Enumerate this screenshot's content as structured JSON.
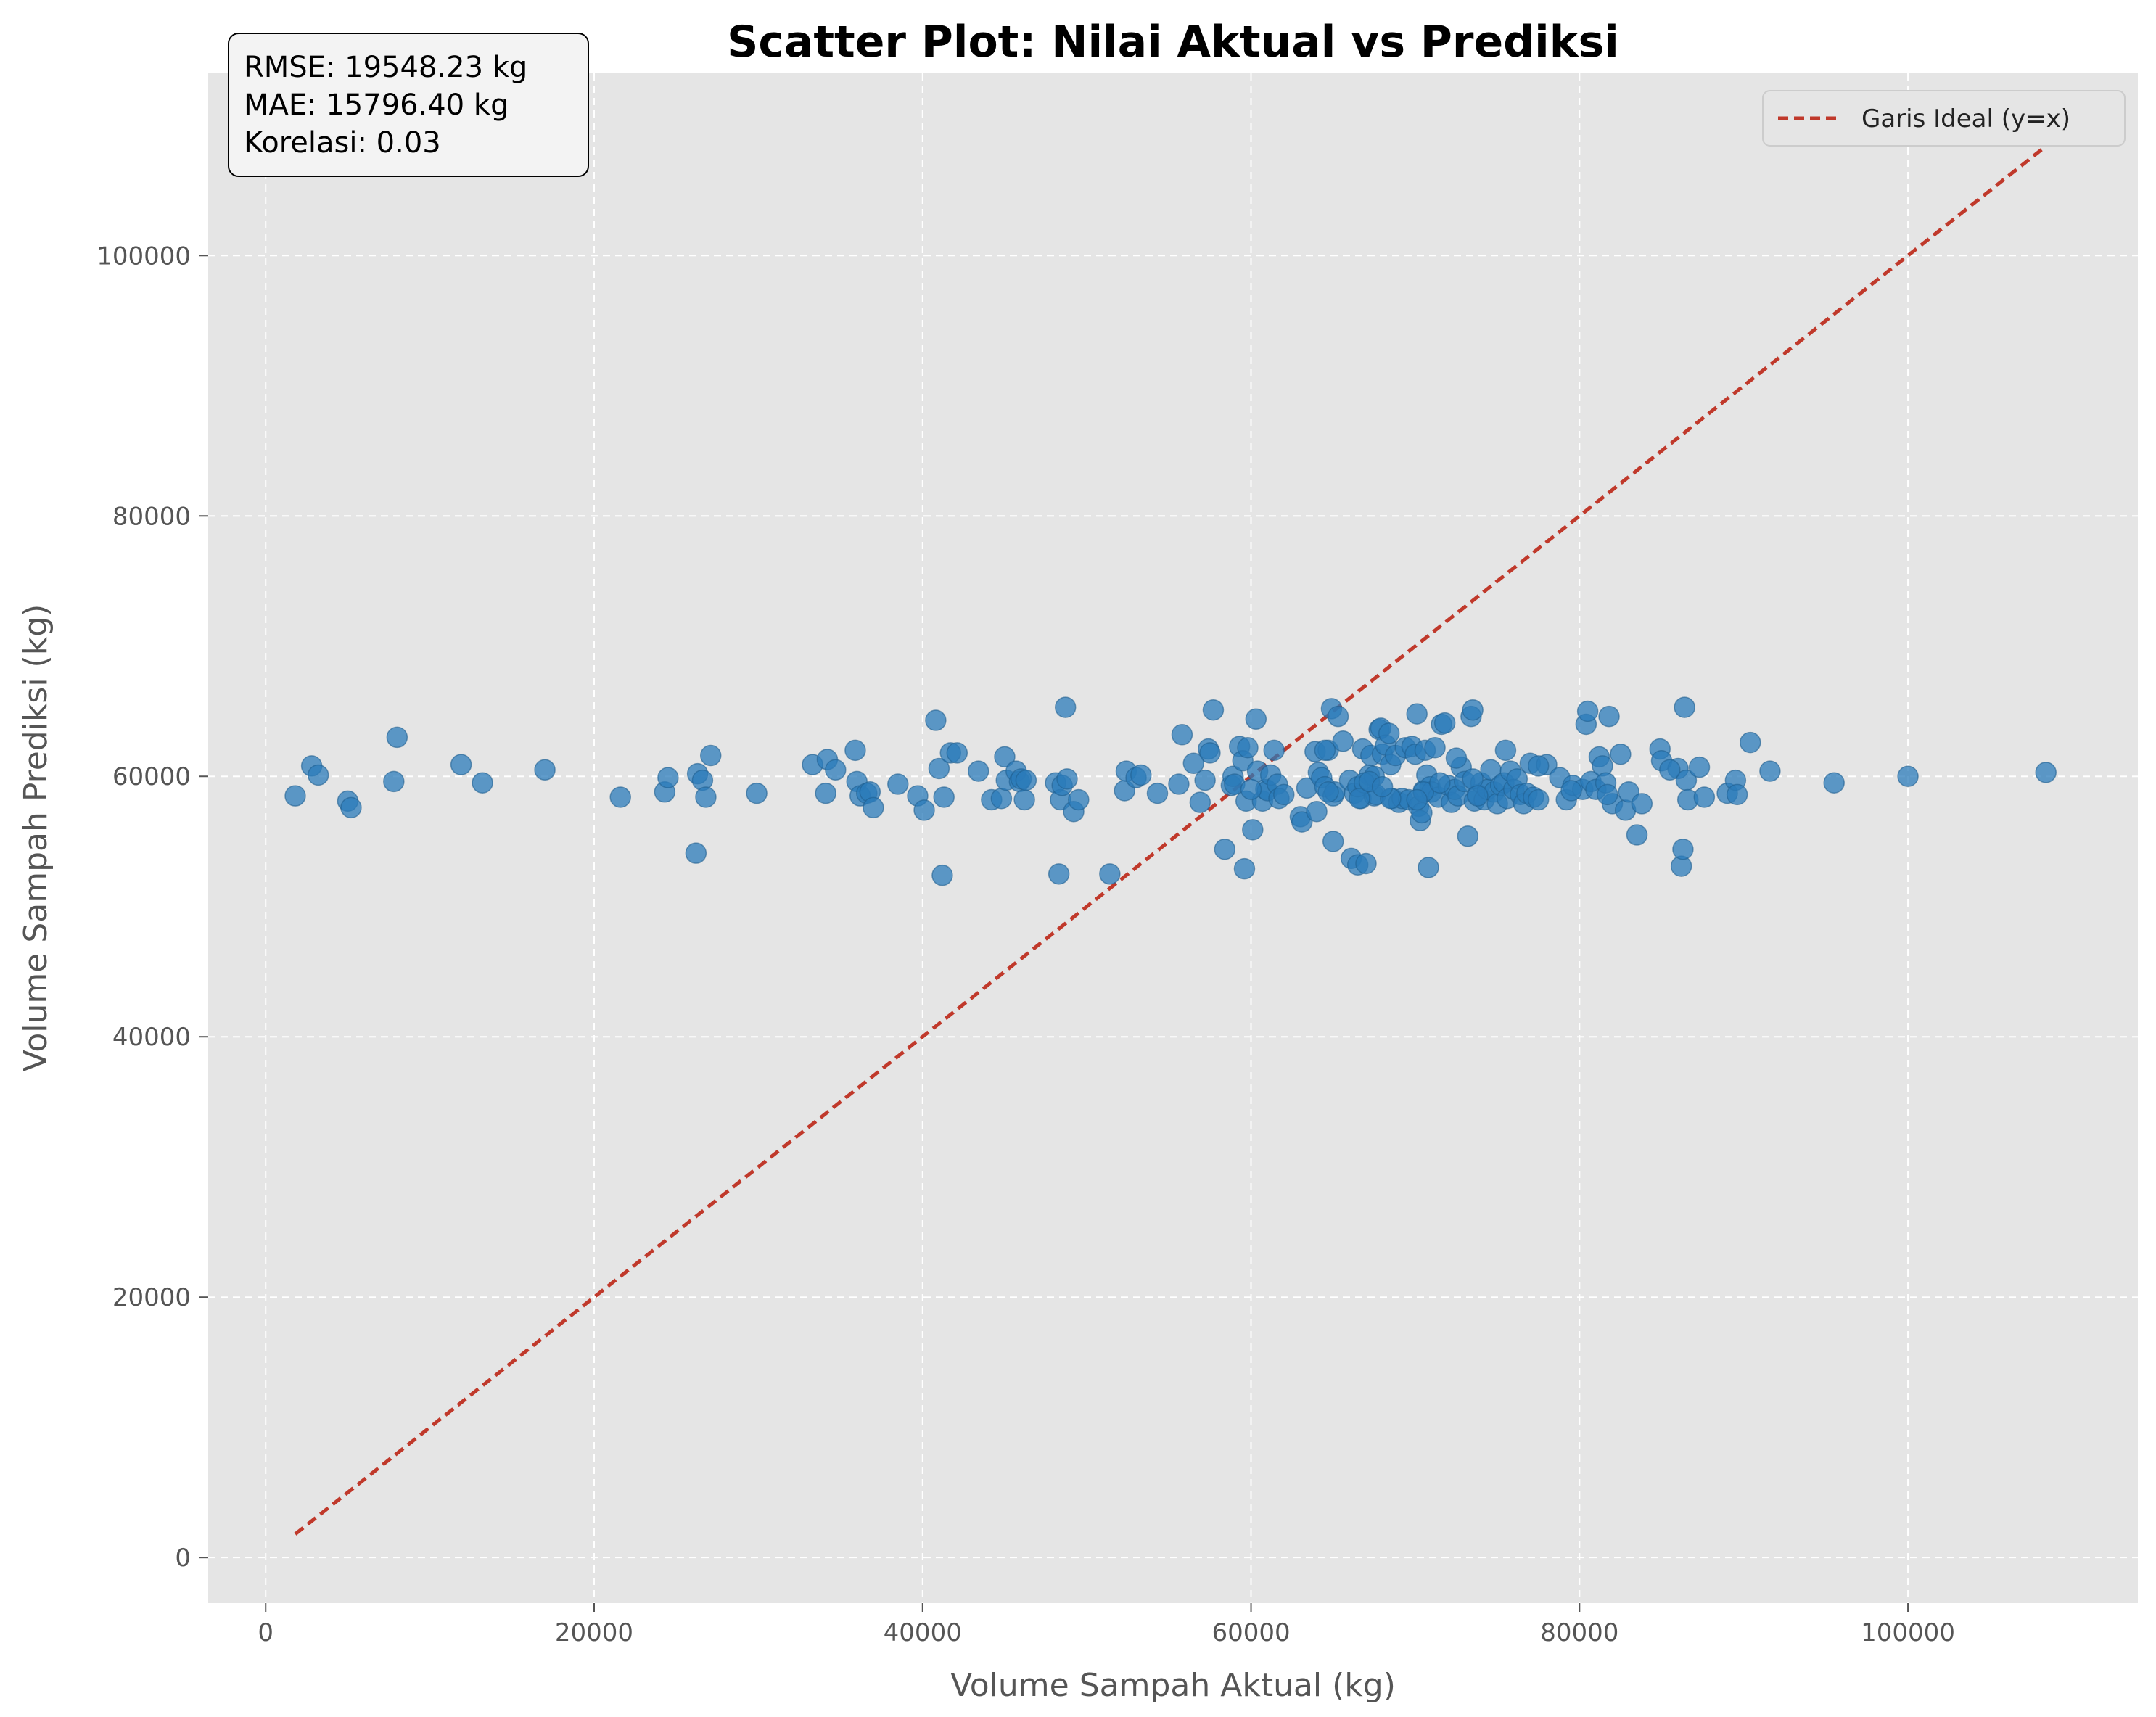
{
  "chart_data": {
    "type": "scatter",
    "title": "Scatter Plot: Nilai Aktual vs Prediksi",
    "xlabel": "Volume Sampah Aktual (kg)",
    "ylabel": "Volume Sampah Prediksi (kg)",
    "xlim": [
      -3500,
      114000
    ],
    "ylim": [
      -3500,
      114000
    ],
    "xticks": [
      0,
      20000,
      40000,
      60000,
      80000,
      100000
    ],
    "yticks": [
      0,
      20000,
      40000,
      60000,
      80000,
      100000
    ],
    "xtick_labels": [
      "0",
      "20000",
      "40000",
      "60000",
      "80000",
      "100000"
    ],
    "ytick_labels": [
      "0",
      "20000",
      "40000",
      "60000",
      "80000",
      "100000"
    ],
    "grid": true,
    "legend_position": "top-right",
    "annotation": {
      "position": "top-left",
      "lines": [
        "RMSE: 19548.23 kg",
        "MAE: 15796.40 kg",
        "Korelasi: 0.03"
      ]
    },
    "colors": {
      "points": "#2b7bba",
      "ideal_line": "#c0392b",
      "background": "#e5e5e5",
      "grid": "#ffffff"
    },
    "series": [
      {
        "name": "Data",
        "x": [
          1800,
          2800,
          3200,
          5000,
          5200,
          7800,
          8000,
          11900,
          13200,
          17000,
          21600,
          24300,
          24500,
          26200,
          26300,
          26600,
          26800,
          27100,
          29900,
          33300,
          34100,
          34200,
          34700,
          35900,
          36000,
          36200,
          36600,
          36800,
          37000,
          38500,
          39700,
          40100,
          40800,
          41000,
          41200,
          41300,
          41700,
          42100,
          43400,
          44200,
          44800,
          45000,
          45100,
          45700,
          45900,
          46000,
          46200,
          46300,
          48100,
          48300,
          48400,
          48500,
          48700,
          48800,
          49200,
          49500,
          51400,
          52300,
          52400,
          53000,
          53300,
          54300,
          55600,
          55800,
          56900,
          57200,
          57400,
          57500,
          57700,
          58400,
          58800,
          58900,
          59300,
          59500,
          59600,
          59700,
          59800,
          60100,
          60300,
          60400,
          60700,
          60900,
          61000,
          61200,
          61400,
          61600,
          61700,
          63000,
          63100,
          63400,
          63900,
          64000,
          64100,
          64300,
          64500,
          64700,
          64900,
          65000,
          65100,
          65300,
          65600,
          66000,
          66100,
          66300,
          66500,
          66700,
          66800,
          67000,
          67200,
          67300,
          67500,
          67600,
          67800,
          67900,
          68000,
          68200,
          68400,
          68500,
          68600,
          68800,
          69000,
          69200,
          69400,
          69600,
          69800,
          70000,
          70100,
          70200,
          70300,
          70400,
          70500,
          70600,
          70700,
          70800,
          70900,
          71000,
          71200,
          71400,
          71600,
          71800,
          72000,
          72200,
          72400,
          72600,
          72800,
          73000,
          73200,
          73400,
          73600,
          73800,
          74000,
          74200,
          74400,
          74600,
          74800,
          75000,
          75200,
          75400,
          75600,
          75800,
          76000,
          76200,
          76400,
          76600,
          76800,
          77000,
          77200,
          77500,
          78000,
          78800,
          79200,
          79600,
          80200,
          80400,
          80500,
          80700,
          81000,
          81200,
          81400,
          81600,
          81800,
          82000,
          82500,
          82800,
          83000,
          83500,
          83800,
          84900,
          85000,
          86000,
          86200,
          86300,
          86400,
          86500,
          86600,
          87300,
          87600,
          89000,
          89500,
          89600,
          90400,
          91600,
          95500,
          100000,
          108400,
          72500,
          73500,
          56500,
          65000,
          62000,
          59000,
          67500,
          70500,
          71500,
          64500,
          66500,
          68500,
          75500,
          77500,
          79500,
          81700,
          85500,
          66900,
          60000,
          66600,
          67200,
          70100,
          73800,
          73500,
          64700,
          68000
        ],
        "y": [
          58500,
          60800,
          60100,
          58100,
          57600,
          59600,
          63000,
          60900,
          59500,
          60500,
          58400,
          58800,
          59900,
          54100,
          60200,
          59700,
          58400,
          61600,
          58700,
          60900,
          58700,
          61300,
          60500,
          62000,
          59600,
          58500,
          58700,
          58800,
          57600,
          59400,
          58500,
          57400,
          64300,
          60600,
          52400,
          58400,
          61800,
          61800,
          60400,
          58200,
          58300,
          61500,
          59700,
          60400,
          59600,
          59800,
          58200,
          59700,
          59500,
          52500,
          58200,
          59300,
          65300,
          59800,
          57300,
          58200,
          52500,
          58900,
          60400,
          59900,
          60100,
          58700,
          59400,
          63200,
          58000,
          59700,
          62100,
          61800,
          65100,
          54400,
          59300,
          60000,
          62300,
          61200,
          52900,
          58100,
          62200,
          55900,
          64400,
          60400,
          58100,
          59000,
          58900,
          60100,
          62000,
          59400,
          58300,
          56900,
          56500,
          59100,
          61900,
          57300,
          60300,
          59900,
          59200,
          62000,
          65200,
          58500,
          58800,
          64600,
          62700,
          59700,
          53700,
          58700,
          53200,
          58300,
          62100,
          53300,
          60100,
          61600,
          58500,
          58600,
          63600,
          63700,
          61700,
          62400,
          63300,
          60900,
          58300,
          61600,
          58000,
          58300,
          62200,
          58200,
          62300,
          61700,
          64800,
          57700,
          56600,
          57200,
          58900,
          62000,
          60100,
          53000,
          59200,
          58800,
          62200,
          58400,
          64000,
          64100,
          59300,
          58000,
          59000,
          58500,
          60700,
          59600,
          55400,
          64600,
          58100,
          58600,
          59500,
          58200,
          59000,
          60500,
          58800,
          57900,
          59300,
          59500,
          58300,
          60400,
          59000,
          59800,
          58600,
          57900,
          58700,
          61000,
          58400,
          58200,
          60900,
          59900,
          58200,
          59300,
          59000,
          64000,
          65000,
          59600,
          59000,
          61500,
          60800,
          59500,
          64600,
          57900,
          61700,
          57400,
          58800,
          55500,
          57900,
          62100,
          61200,
          60600,
          53100,
          54400,
          65300,
          59700,
          58200,
          60700,
          58400,
          58700,
          59700,
          58600,
          62600,
          60400,
          59500,
          60000,
          60300,
          61400,
          59800,
          61000,
          55000,
          58600,
          59400,
          60000,
          58800,
          59500,
          62000,
          59200,
          58300,
          62000,
          60800,
          58900,
          58600,
          60500,
          59500,
          59000,
          58300,
          59600,
          58200,
          58500,
          65100,
          58800,
          59200
        ]
      },
      {
        "name": "Garis Ideal (y=x)",
        "x": [
          1800,
          108400
        ],
        "y": [
          1800,
          108400
        ]
      }
    ]
  }
}
